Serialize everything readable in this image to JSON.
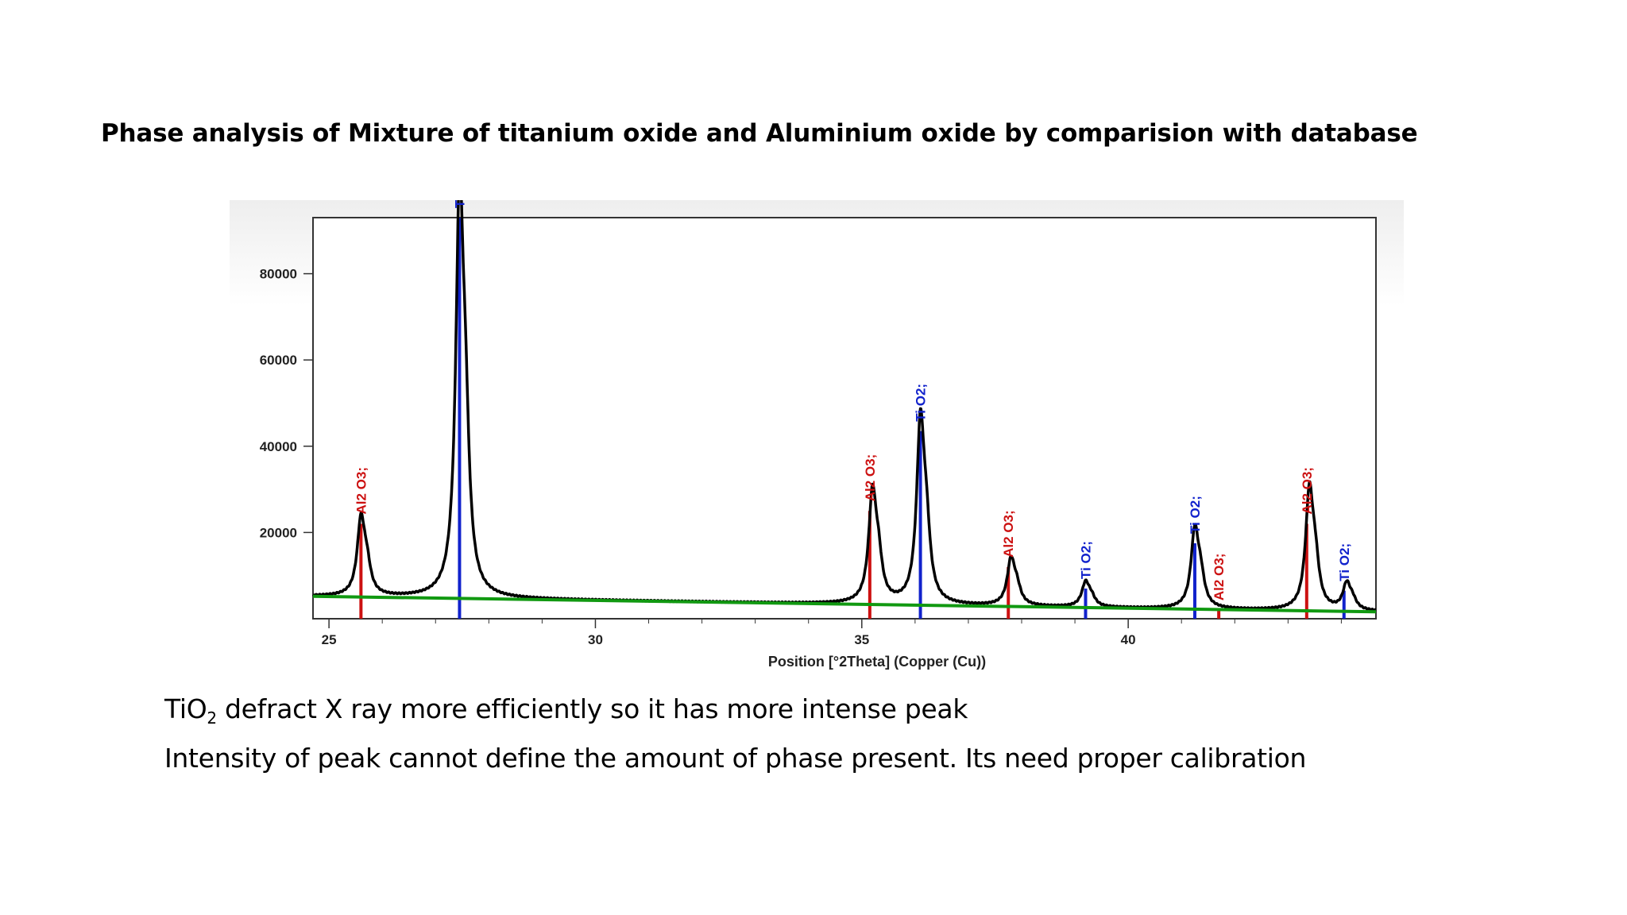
{
  "title": "Phase analysis of Mixture of titanium oxide and Aluminium oxide by comparision with database",
  "notes": {
    "line1_prefix": "TiO",
    "line1_sub": "2",
    "line1_rest": " defract X ray more efficiently so it has more intense peak",
    "line2": "Intensity of peak cannot define the amount of phase present. Its need proper calibration"
  },
  "chart_data": {
    "type": "line",
    "xlabel": "Position [°2Theta] (Copper (Cu))",
    "ylabel": "",
    "xlim": [
      24.7,
      44.65
    ],
    "ylim": [
      0,
      93000
    ],
    "x_ticks": [
      25,
      30,
      35,
      40
    ],
    "y_ticks": [
      20000,
      40000,
      60000,
      80000
    ],
    "colors": {
      "Al2O3": "#cc1111",
      "TiO2": "#1122cc",
      "pattern": "#000000",
      "background": "#119911"
    },
    "background_line": {
      "x": [
        24.7,
        44.65
      ],
      "y": [
        5200,
        1600
      ]
    },
    "peaks": [
      {
        "x": 25.6,
        "y": 22000,
        "phase": "Al2O3"
      },
      {
        "x": 27.45,
        "y": 93000,
        "phase": "TiO2"
      },
      {
        "x": 35.2,
        "y": 27500,
        "phase": "Al2O3"
      },
      {
        "x": 36.1,
        "y": 43000,
        "phase": "TiO2"
      },
      {
        "x": 37.8,
        "y": 13000,
        "phase": "Al2O3"
      },
      {
        "x": 39.2,
        "y": 8000,
        "phase": "TiO2"
      },
      {
        "x": 41.25,
        "y": 19500,
        "phase": "TiO2"
      },
      {
        "x": 43.4,
        "y": 28000,
        "phase": "Al2O3"
      },
      {
        "x": 44.1,
        "y": 7500,
        "phase": "TiO2"
      }
    ],
    "reference_lines": [
      {
        "x": 25.6,
        "y": 22000,
        "phase": "Al2O3",
        "label": "Al2 O3;"
      },
      {
        "x": 27.45,
        "y": 93000,
        "phase": "TiO2",
        "label": "Ti O2;"
      },
      {
        "x": 35.15,
        "y": 25000,
        "phase": "Al2O3",
        "label": "Al2 O3;"
      },
      {
        "x": 36.1,
        "y": 43500,
        "phase": "TiO2",
        "label": "Ti O2;"
      },
      {
        "x": 37.75,
        "y": 12000,
        "phase": "Al2O3",
        "label": "Al2 O3;"
      },
      {
        "x": 39.2,
        "y": 7000,
        "phase": "TiO2",
        "label": "Ti O2;"
      },
      {
        "x": 41.25,
        "y": 17500,
        "phase": "TiO2",
        "label": "Ti O2;"
      },
      {
        "x": 41.7,
        "y": 2000,
        "phase": "Al2O3",
        "label": "Al2 O3;"
      },
      {
        "x": 43.35,
        "y": 22000,
        "phase": "Al2O3",
        "label": "Al2 O3;"
      },
      {
        "x": 44.05,
        "y": 6500,
        "phase": "TiO2",
        "label": "Ti O2;"
      }
    ]
  }
}
